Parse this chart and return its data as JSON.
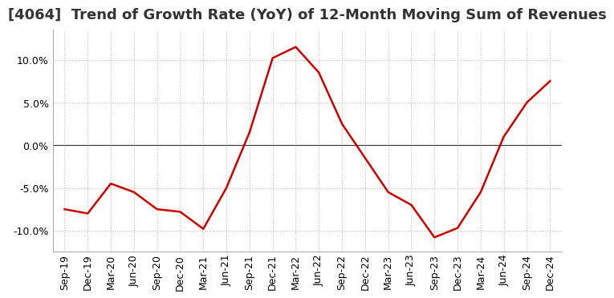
{
  "title": "[4064]  Trend of Growth Rate (YoY) of 12-Month Moving Sum of Revenues",
  "x_labels": [
    "Sep-19",
    "Dec-19",
    "Mar-20",
    "Jun-20",
    "Sep-20",
    "Dec-20",
    "Mar-21",
    "Jun-21",
    "Sep-21",
    "Dec-21",
    "Mar-22",
    "Jun-22",
    "Sep-22",
    "Dec-22",
    "Mar-23",
    "Jun-23",
    "Sep-23",
    "Dec-23",
    "Mar-24",
    "Jun-24",
    "Sep-24",
    "Dec-24"
  ],
  "y_values": [
    -7.5,
    -8.0,
    -4.5,
    -5.5,
    -7.5,
    -7.8,
    -9.8,
    -5.0,
    1.5,
    10.2,
    11.5,
    8.5,
    2.5,
    -1.5,
    -5.5,
    -7.0,
    -10.8,
    -9.7,
    -5.5,
    1.0,
    5.0,
    7.5
  ],
  "line_color": "#cc0000",
  "line_width": 1.8,
  "bg_color": "#ffffff",
  "plot_bg_color": "#ffffff",
  "grid_color": "#bbbbbb",
  "zero_line_color": "#333333",
  "ylim": [
    -12.5,
    13.5
  ],
  "yticks": [
    -10,
    -5,
    0,
    5,
    10
  ],
  "title_fontsize": 13,
  "tick_fontsize": 9,
  "title_color": "#333333"
}
